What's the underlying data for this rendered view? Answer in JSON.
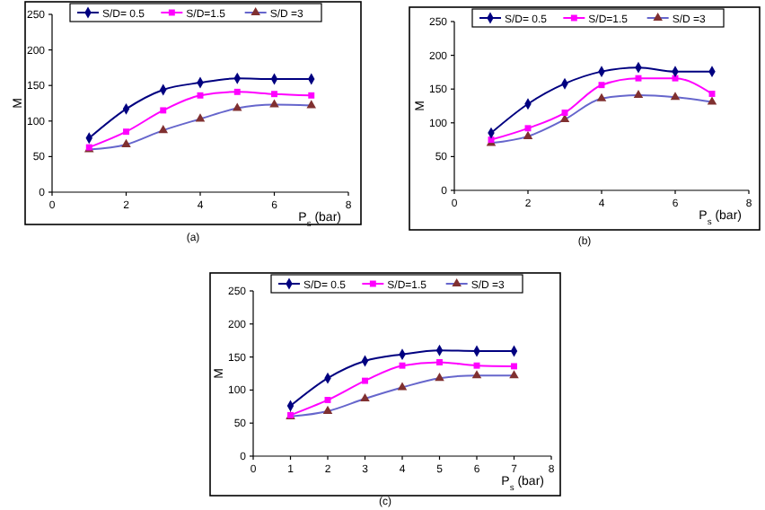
{
  "chart_data": [
    {
      "type": "line",
      "xlabel": "P$_{s}$ (bar)",
      "ylabel": "M",
      "annotations": [
        "(a)"
      ],
      "x": [
        1,
        2,
        3,
        4,
        5,
        6,
        7
      ],
      "xlim": [
        0,
        8
      ],
      "xticks": [
        0,
        2,
        4,
        6,
        8
      ],
      "ylim": [
        0,
        250
      ],
      "yticks": [
        0,
        50,
        100,
        150,
        200,
        250
      ],
      "legend": "top",
      "series": [
        {
          "name": "S/D= 0.5",
          "color": "#000080",
          "marker": "diamond",
          "values": [
            76,
            117,
            144,
            154,
            160,
            159,
            159
          ]
        },
        {
          "name": "S/D=1.5",
          "color": "#ff00ff",
          "marker": "square",
          "values": [
            63,
            85,
            115,
            136,
            141,
            138,
            136
          ]
        },
        {
          "name": "S/D =3",
          "color": "#6666cc",
          "marker": "triangle",
          "values": [
            60,
            67,
            87,
            103,
            118,
            123,
            122
          ]
        }
      ]
    },
    {
      "type": "line",
      "xlabel": "P$_{s}$ (bar)",
      "ylabel": "M",
      "annotations": [
        "(b)"
      ],
      "x": [
        1,
        2,
        3,
        4,
        5,
        6,
        7
      ],
      "xlim": [
        0,
        8
      ],
      "xticks": [
        0,
        2,
        4,
        6,
        8
      ],
      "ylim": [
        0,
        250
      ],
      "yticks": [
        0,
        50,
        100,
        150,
        200,
        250
      ],
      "legend": "top",
      "series": [
        {
          "name": "S/D= 0.5",
          "color": "#000080",
          "marker": "diamond",
          "values": [
            85,
            128,
            158,
            176,
            182,
            176,
            176
          ]
        },
        {
          "name": "S/D=1.5",
          "color": "#ff00ff",
          "marker": "square",
          "values": [
            75,
            92,
            115,
            156,
            166,
            166,
            143
          ]
        },
        {
          "name": "S/D =3",
          "color": "#6666cc",
          "marker": "triangle",
          "values": [
            70,
            80,
            105,
            136,
            141,
            138,
            131
          ]
        }
      ]
    },
    {
      "type": "line",
      "xlabel": "P$_{s}$ (bar)",
      "ylabel": "M",
      "annotations": [
        "(c)"
      ],
      "x": [
        1,
        2,
        3,
        4,
        5,
        6,
        7
      ],
      "xlim": [
        0,
        8
      ],
      "xticks": [
        0,
        1,
        2,
        3,
        4,
        5,
        6,
        7,
        8
      ],
      "ylim": [
        0,
        250
      ],
      "yticks": [
        0,
        50,
        100,
        150,
        200,
        250
      ],
      "legend": "top",
      "series": [
        {
          "name": "S/D= 0.5",
          "color": "#000080",
          "marker": "diamond",
          "values": [
            76,
            118,
            144,
            154,
            160,
            159,
            159
          ]
        },
        {
          "name": "S/D=1.5",
          "color": "#ff00ff",
          "marker": "square",
          "values": [
            62,
            85,
            114,
            137,
            142,
            137,
            136
          ]
        },
        {
          "name": "S/D =3",
          "color": "#6666cc",
          "marker": "triangle",
          "values": [
            60,
            68,
            87,
            104,
            118,
            122,
            122
          ]
        }
      ]
    }
  ]
}
